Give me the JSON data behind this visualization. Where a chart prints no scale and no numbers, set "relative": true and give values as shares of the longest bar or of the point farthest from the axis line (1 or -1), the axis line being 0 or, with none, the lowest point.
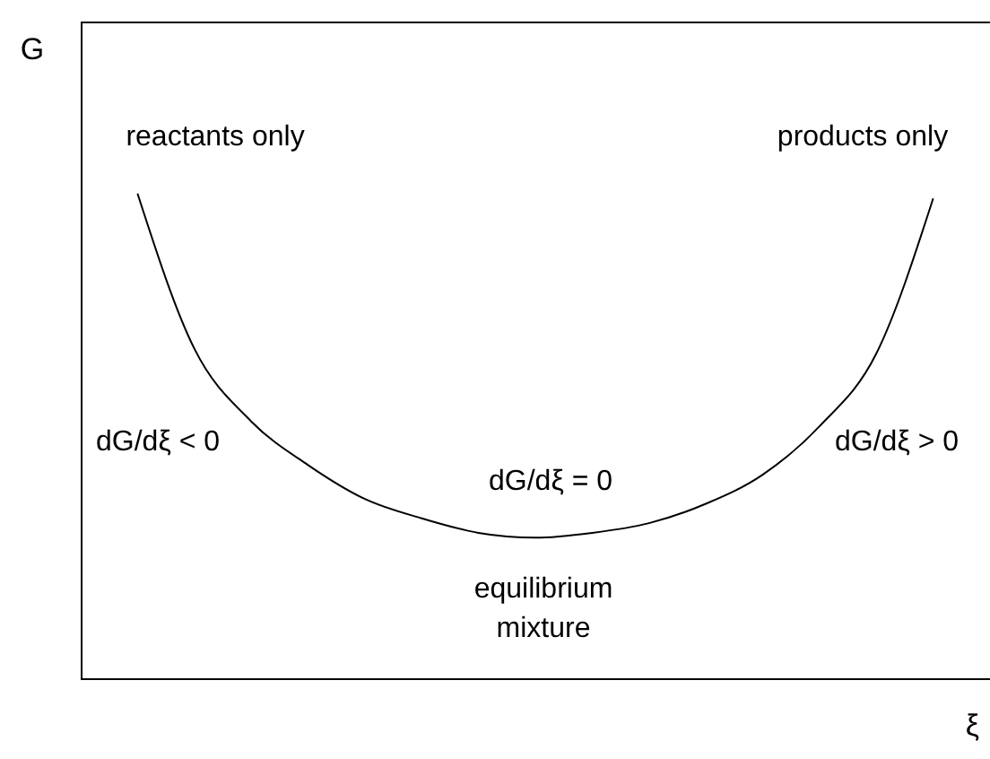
{
  "chart_data": {
    "type": "line",
    "relative": true,
    "xlabel": "ξ",
    "ylabel": "G",
    "color": "#000000",
    "categories": [
      null,
      null,
      null,
      null,
      null,
      null,
      null,
      null,
      null,
      null,
      null,
      null,
      null,
      null,
      null
    ],
    "values": [
      1,
      0.68,
      0.53,
      0.44,
      0.37,
      0.33,
      0.3,
      0.29,
      0.3,
      0.32,
      0.36,
      0.42,
      0.52,
      0.67,
      0.99
    ],
    "annotations": [
      "reactants only",
      "products only",
      "dG/dξ < 0",
      "dG/dξ = 0",
      "dG/dξ > 0",
      "equilibrium\nmixture"
    ]
  }
}
